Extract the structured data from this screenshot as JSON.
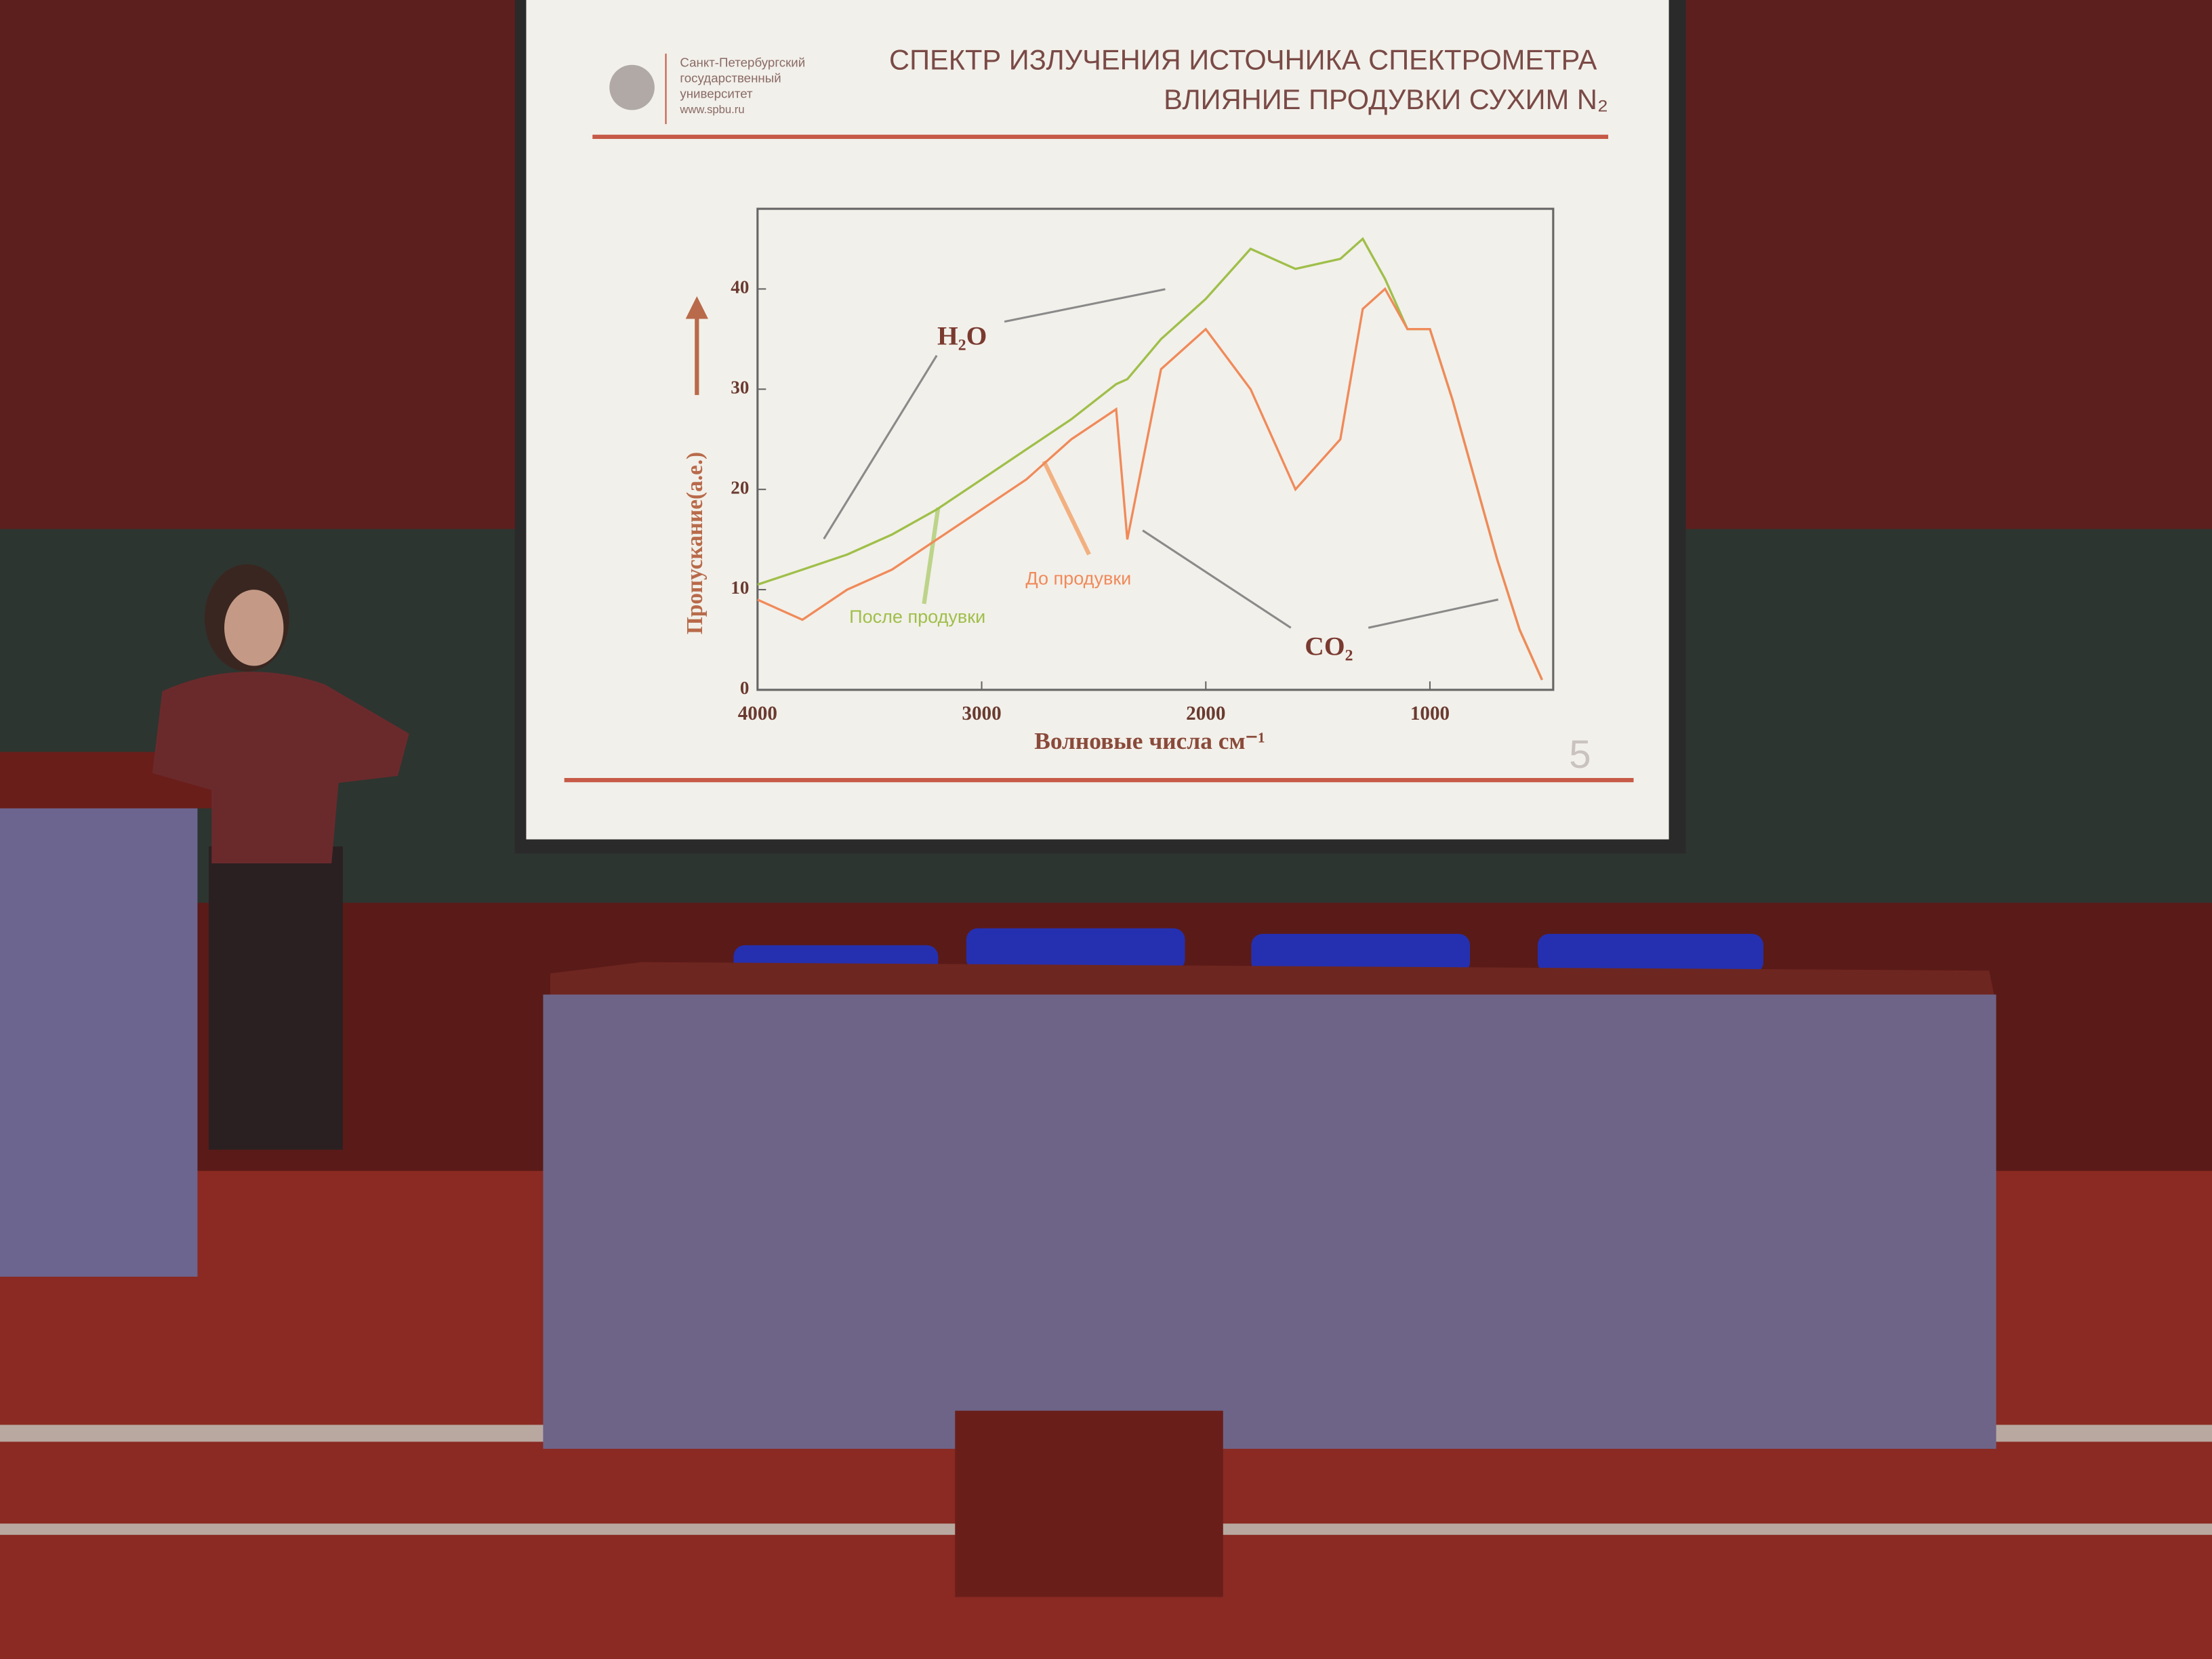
{
  "slide": {
    "logo": [
      "Санкт-Петербургский",
      "государственный",
      "университет",
      "www.spbu.ru"
    ],
    "title": [
      "СПЕКТР ИЗЛУЧЕНИЯ ИСТОЧНИКА СПЕКТРОМЕТРА",
      "ВЛИЯНИЕ ПРОДУВКИ СУХИМ N₂"
    ],
    "page_number": 5
  },
  "chart_data": {
    "type": "line",
    "xlabel": "Волновые числа см⁻¹",
    "ylabel": "Пропускание(а.е.)",
    "annotations": [
      "H₂O",
      "CO₂"
    ],
    "x": [
      4000,
      3800,
      3600,
      3400,
      3200,
      3000,
      2800,
      2600,
      2400,
      2350,
      2200,
      2000,
      1800,
      1600,
      1400,
      1300,
      1200,
      1100,
      1000,
      900,
      800,
      700,
      600,
      500
    ],
    "series": [
      {
        "name": "После продувки",
        "color": "#9fbf4a",
        "values": [
          10.5,
          12,
          13.5,
          15.5,
          18,
          21,
          24,
          27,
          30.5,
          31,
          35,
          39,
          44,
          42,
          43,
          45,
          41,
          36,
          36,
          29,
          21,
          13,
          6,
          1
        ]
      },
      {
        "name": "До продувки",
        "color": "#f08a5a",
        "values": [
          9,
          7,
          10,
          12,
          15,
          18,
          21,
          25,
          28,
          15,
          32,
          36,
          30,
          20,
          25,
          38,
          40,
          36,
          36,
          29,
          21,
          13,
          6,
          1
        ]
      }
    ],
    "xlim": [
      4000,
      450
    ],
    "ylim": [
      0,
      48
    ],
    "xticks": [
      4000,
      3000,
      2000,
      1000
    ],
    "yticks": [
      0,
      10,
      20,
      30,
      40
    ]
  }
}
